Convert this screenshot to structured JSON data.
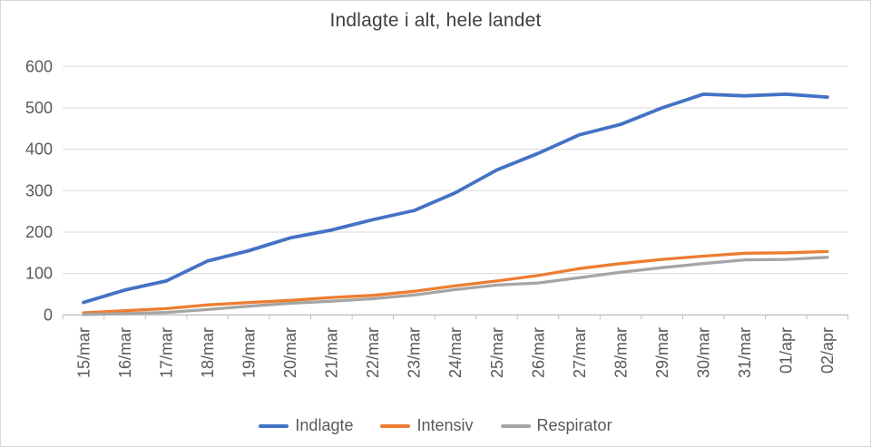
{
  "chart_data": {
    "type": "line",
    "title": "Indlagte i alt, hele landet",
    "categories": [
      "15/mar",
      "16/mar",
      "17/mar",
      "18/mar",
      "19/mar",
      "20/mar",
      "21/mar",
      "22/mar",
      "23/mar",
      "24/mar",
      "25/mar",
      "26/mar",
      "27/mar",
      "28/mar",
      "29/mar",
      "30/mar",
      "31/mar",
      "01/apr",
      "02/apr"
    ],
    "series": [
      {
        "name": "Indlagte",
        "color": "#4472C4",
        "values": [
          30,
          60,
          82,
          130,
          155,
          186,
          205,
          230,
          252,
          295,
          350,
          390,
          435,
          460,
          500,
          533,
          529,
          533,
          526
        ]
      },
      {
        "name": "Intensiv",
        "color": "#ED7D31",
        "values": [
          5,
          10,
          15,
          24,
          30,
          35,
          42,
          47,
          57,
          70,
          82,
          95,
          112,
          124,
          134,
          142,
          149,
          150,
          153
        ]
      },
      {
        "name": "Respirator",
        "color": "#A5A5A5",
        "values": [
          1,
          3,
          6,
          13,
          21,
          28,
          33,
          39,
          48,
          61,
          72,
          77,
          90,
          103,
          114,
          124,
          133,
          134,
          139
        ]
      }
    ],
    "ylim": [
      0,
      600
    ],
    "y_ticks": [
      0,
      100,
      200,
      300,
      400,
      500,
      600
    ],
    "grid": true,
    "legend_position": "bottom",
    "x_labels_rotated_90": true,
    "colors": {
      "grid_line": "#D9D9D9",
      "axis_line": "#BFBFBF",
      "tick_label_text": "#595959",
      "title_text": "#404040"
    }
  }
}
